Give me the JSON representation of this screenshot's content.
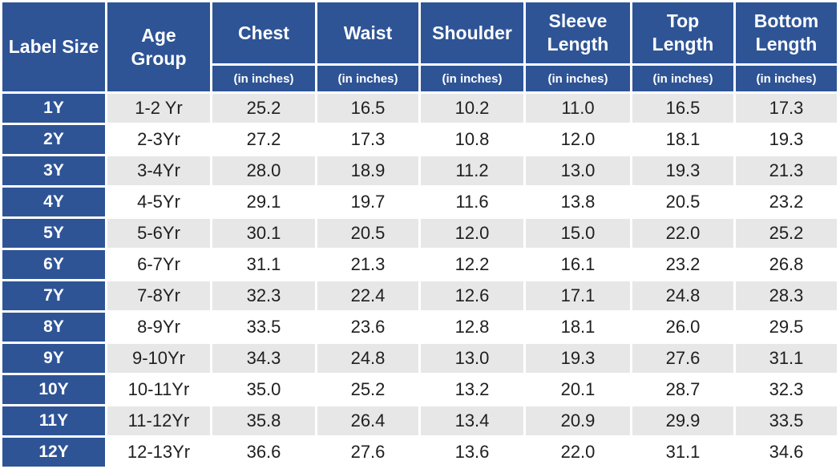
{
  "chart_data": {
    "type": "table",
    "columns": [
      {
        "label": "Label Size",
        "sub": ""
      },
      {
        "label": "Age\nGroup",
        "sub": ""
      },
      {
        "label": "Chest",
        "sub": "(in inches)"
      },
      {
        "label": "Waist",
        "sub": "(in inches)"
      },
      {
        "label": "Shoulder",
        "sub": "(in inches)"
      },
      {
        "label": "Sleeve\nLength",
        "sub": "(in inches)"
      },
      {
        "label": "Top\nLength",
        "sub": "(in inches)"
      },
      {
        "label": "Bottom\nLength",
        "sub": "(in inches)"
      }
    ],
    "rows": [
      {
        "size": "1Y",
        "age": "1-2 Yr",
        "values": [
          "25.2",
          "16.5",
          "10.2",
          "11.0",
          "16.5",
          "17.3"
        ]
      },
      {
        "size": "2Y",
        "age": "2-3Yr",
        "values": [
          "27.2",
          "17.3",
          "10.8",
          "12.0",
          "18.1",
          "19.3"
        ]
      },
      {
        "size": "3Y",
        "age": "3-4Yr",
        "values": [
          "28.0",
          "18.9",
          "11.2",
          "13.0",
          "19.3",
          "21.3"
        ]
      },
      {
        "size": "4Y",
        "age": "4-5Yr",
        "values": [
          "29.1",
          "19.7",
          "11.6",
          "13.8",
          "20.5",
          "23.2"
        ]
      },
      {
        "size": "5Y",
        "age": "5-6Yr",
        "values": [
          "30.1",
          "20.5",
          "12.0",
          "15.0",
          "22.0",
          "25.2"
        ]
      },
      {
        "size": "6Y",
        "age": "6-7Yr",
        "values": [
          "31.1",
          "21.3",
          "12.2",
          "16.1",
          "23.2",
          "26.8"
        ]
      },
      {
        "size": "7Y",
        "age": "7-8Yr",
        "values": [
          "32.3",
          "22.4",
          "12.6",
          "17.1",
          "24.8",
          "28.3"
        ]
      },
      {
        "size": "8Y",
        "age": "8-9Yr",
        "values": [
          "33.5",
          "23.6",
          "12.8",
          "18.1",
          "26.0",
          "29.5"
        ]
      },
      {
        "size": "9Y",
        "age": "9-10Yr",
        "values": [
          "34.3",
          "24.8",
          "13.0",
          "19.3",
          "27.6",
          "31.1"
        ]
      },
      {
        "size": "10Y",
        "age": "10-11Yr",
        "values": [
          "35.0",
          "25.2",
          "13.2",
          "20.1",
          "28.7",
          "32.3"
        ]
      },
      {
        "size": "11Y",
        "age": "11-12Yr",
        "values": [
          "35.8",
          "26.4",
          "13.4",
          "20.9",
          "29.9",
          "33.5"
        ]
      },
      {
        "size": "12Y",
        "age": "12-13Yr",
        "values": [
          "36.6",
          "27.6",
          "13.6",
          "22.0",
          "31.1",
          "34.6"
        ]
      }
    ]
  },
  "colors": {
    "header_blue": "#2E5496",
    "stripe_gray": "#E7E7E7",
    "row_white": "#FFFFFF",
    "data_text": "#1F1F1F",
    "header_text": "#FFFFFF"
  }
}
